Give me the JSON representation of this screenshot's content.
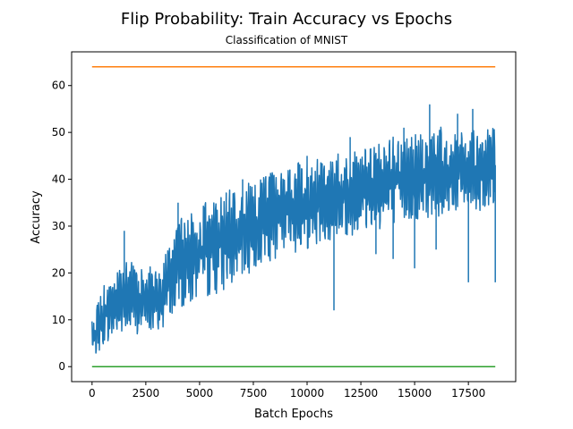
{
  "chart_data": {
    "type": "line",
    "title": "Flip Probability: Train Accuracy vs Epochs",
    "subtitle": "Classification of MNIST",
    "xlabel": "Batch Epochs",
    "ylabel": "Accuracy",
    "xlim": [
      -950,
      19700
    ],
    "ylim": [
      -3.2,
      67.2
    ],
    "xticks": [
      0,
      2500,
      5000,
      7500,
      10000,
      12500,
      15000,
      17500
    ],
    "yticks": [
      0,
      10,
      20,
      30,
      40,
      50,
      60
    ],
    "grid": false,
    "legend": "none",
    "series": [
      {
        "color": "#1f77b4",
        "style": "noisy-band",
        "x": [
          0,
          300,
          600,
          1000,
          1500,
          2000,
          2500,
          3000,
          3300,
          3600,
          4000,
          4500,
          5000,
          5500,
          6000,
          6500,
          7000,
          7500,
          8000,
          9000,
          10000,
          11000,
          12000,
          13000,
          14000,
          15000,
          16000,
          17000,
          18000,
          18750
        ],
        "low": [
          2,
          3,
          5,
          6,
          7,
          7,
          7,
          7,
          8,
          11,
          12,
          13,
          14,
          15,
          16,
          17,
          19,
          20,
          22,
          24,
          25,
          27,
          28,
          29,
          30,
          31,
          32,
          33,
          33,
          34
        ],
        "high": [
          11,
          14,
          18,
          20,
          22,
          23,
          22,
          21,
          23,
          27,
          31,
          33,
          34,
          36,
          37,
          38,
          39,
          40,
          41,
          43,
          44,
          45,
          46,
          47,
          49,
          50,
          51,
          52,
          52,
          52
        ],
        "spikes_down": [
          [
            11250,
            12
          ],
          [
            13200,
            24
          ],
          [
            14000,
            23
          ],
          [
            15000,
            21
          ],
          [
            16000,
            25
          ],
          [
            17500,
            18
          ],
          [
            18750,
            18
          ]
        ],
        "spikes_up": [
          [
            1500,
            29
          ],
          [
            4000,
            35
          ],
          [
            7000,
            40
          ],
          [
            10000,
            45
          ],
          [
            12000,
            49
          ],
          [
            14500,
            51
          ],
          [
            15700,
            56
          ],
          [
            17000,
            54
          ],
          [
            17700,
            55
          ]
        ]
      },
      {
        "color": "#ff7f0e",
        "x": [
          0,
          18750
        ],
        "values": [
          64,
          64
        ]
      },
      {
        "color": "#2ca02c",
        "x": [
          0,
          18750
        ],
        "values": [
          0,
          0
        ]
      }
    ]
  }
}
